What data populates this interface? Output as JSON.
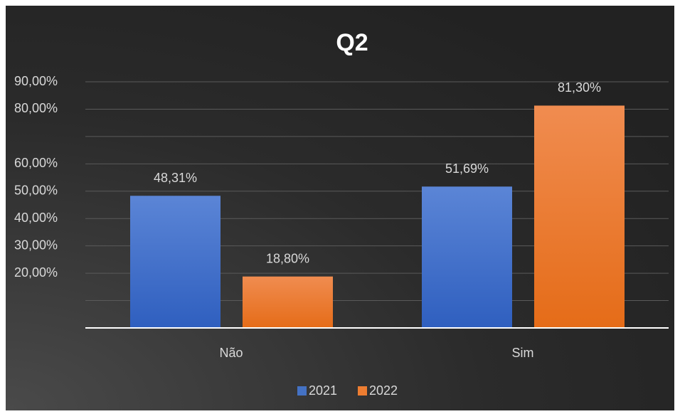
{
  "chart_data": {
    "type": "bar",
    "title": "Q2",
    "categories": [
      "Não",
      "Sim"
    ],
    "series": [
      {
        "name": "2021",
        "color": "#4472c4",
        "values": [
          48.31,
          51.69
        ],
        "value_labels": [
          "48,31%",
          "51,69%"
        ]
      },
      {
        "name": "2022",
        "color": "#ed7d31",
        "values": [
          18.8,
          81.3
        ],
        "value_labels": [
          "18,80%",
          "81,30%"
        ]
      }
    ],
    "ylim": [
      0,
      90
    ],
    "yticks": [
      {
        "value": 90,
        "label": "90,00%"
      },
      {
        "value": 80,
        "label": "80,00%"
      },
      {
        "value": 60,
        "label": "60,00%"
      },
      {
        "value": 50,
        "label": "50,00%"
      },
      {
        "value": 40,
        "label": "40,00%"
      },
      {
        "value": 30,
        "label": "30,00%"
      },
      {
        "value": 20,
        "label": "20,00%"
      }
    ],
    "ygrid": [
      10,
      20,
      30,
      40,
      50,
      60,
      70,
      80,
      90
    ],
    "grid": true,
    "legend": "bottom"
  }
}
